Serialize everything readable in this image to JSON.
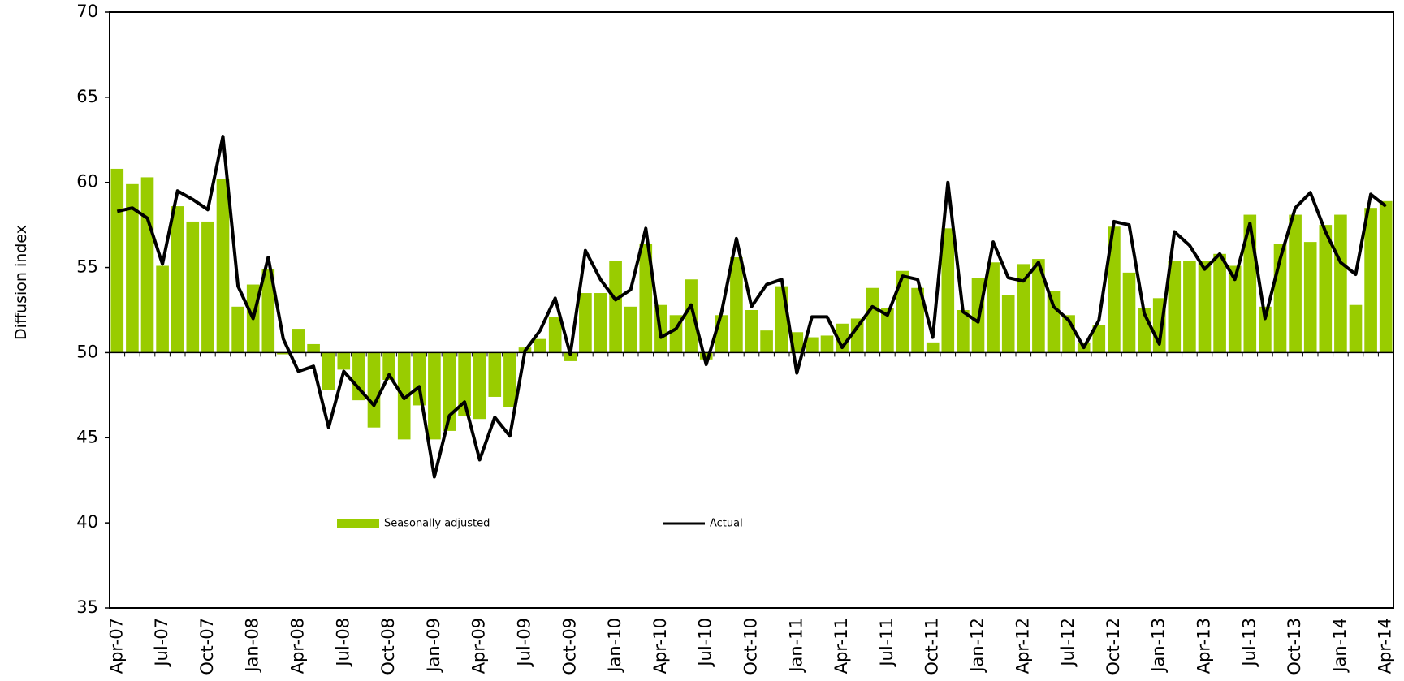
{
  "chart_data": {
    "type": "bar",
    "y_label": "Diffusion index",
    "categories": [
      "Apr-07",
      null,
      null,
      "Jul-07",
      null,
      null,
      "Oct-07",
      null,
      null,
      "Jan-08",
      null,
      null,
      "Apr-08",
      null,
      null,
      "Jul-08",
      null,
      null,
      "Oct-08",
      null,
      null,
      "Jan-09",
      null,
      null,
      "Apr-09",
      null,
      null,
      "Jul-09",
      null,
      null,
      "Oct-09",
      null,
      null,
      "Jan-10",
      null,
      null,
      "Apr-10",
      null,
      null,
      "Jul-10",
      null,
      null,
      "Oct-10",
      null,
      null,
      "Jan-11",
      null,
      null,
      "Apr-11",
      null,
      null,
      "Jul-11",
      null,
      null,
      "Oct-11",
      null,
      null,
      "Jan-12",
      null,
      null,
      "Apr-12",
      null,
      null,
      "Jul-12",
      null,
      null,
      "Oct-12",
      null,
      null,
      "Jan-13",
      null,
      null,
      "Apr-13",
      null,
      null,
      "Jul-13",
      null,
      null,
      "Oct-13",
      null,
      null,
      "Jan-14",
      null,
      null,
      "Apr-14"
    ],
    "series": [
      {
        "name": "Seasonally adjusted",
        "type": "bar",
        "color": "#99cc00",
        "values": [
          60.8,
          59.9,
          60.3,
          55.1,
          58.6,
          57.7,
          57.7,
          60.2,
          52.7,
          54.0,
          54.9,
          49.9,
          51.4,
          50.5,
          47.8,
          49.0,
          47.2,
          45.6,
          48.4,
          44.9,
          46.9,
          44.9,
          45.4,
          46.3,
          46.1,
          47.4,
          46.8,
          50.3,
          50.8,
          52.1,
          49.5,
          53.5,
          53.5,
          55.4,
          52.7,
          56.4,
          52.8,
          52.2,
          54.3,
          49.6,
          52.2,
          55.6,
          52.5,
          51.3,
          53.9,
          51.2,
          50.9,
          51.0,
          51.7,
          52.0,
          53.8,
          52.6,
          54.8,
          53.8,
          50.6,
          57.3,
          52.5,
          54.4,
          55.3,
          53.4,
          55.2,
          55.5,
          53.6,
          52.2,
          50.6,
          51.6,
          57.4,
          54.7,
          52.6,
          53.2,
          55.4,
          55.4,
          55.4,
          55.8,
          55.1,
          58.1,
          52.7,
          56.4,
          58.1,
          56.5,
          57.5,
          58.1,
          52.8,
          58.5,
          58.9
        ]
      },
      {
        "name": "Actual",
        "type": "line",
        "color": "#000000",
        "values": [
          58.3,
          58.5,
          57.9,
          55.2,
          59.5,
          59.0,
          58.4,
          62.7,
          53.9,
          52.0,
          55.6,
          50.8,
          48.9,
          49.2,
          45.6,
          48.9,
          47.9,
          46.9,
          48.7,
          47.3,
          48.0,
          42.7,
          46.3,
          47.1,
          43.7,
          46.2,
          45.1,
          50.1,
          51.3,
          53.2,
          49.9,
          56.0,
          54.3,
          53.1,
          53.7,
          57.3,
          50.9,
          51.4,
          52.8,
          49.3,
          52.3,
          56.7,
          52.7,
          54.0,
          54.3,
          48.8,
          52.1,
          52.1,
          50.3,
          51.5,
          52.7,
          52.2,
          54.5,
          54.3,
          50.9,
          60.0,
          52.4,
          51.8,
          56.5,
          54.4,
          54.2,
          55.3,
          52.7,
          51.9,
          50.3,
          51.9,
          57.7,
          57.5,
          52.3,
          50.5,
          57.1,
          56.3,
          54.9,
          55.8,
          54.3,
          57.6,
          52.0,
          55.5,
          58.5,
          59.4,
          57.1,
          55.3,
          54.6,
          59.3,
          58.6
        ]
      }
    ],
    "baseline": 50,
    "ylim": [
      35,
      70
    ],
    "yticks": [
      35,
      40,
      45,
      50,
      55,
      60,
      65,
      70
    ]
  }
}
